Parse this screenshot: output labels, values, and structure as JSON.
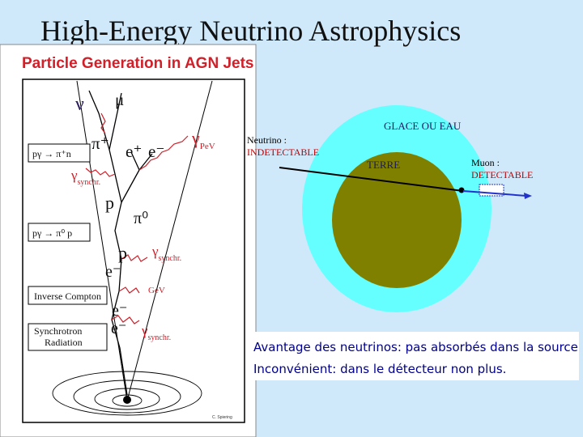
{
  "header": {
    "title": "High-Energy Neutrino Astrophysics"
  },
  "figure_left": {
    "title": "Particle Generation in AGN Jets",
    "particles": [
      {
        "text": "ν"
      },
      {
        "text": "μ"
      },
      {
        "text": "π⁺"
      },
      {
        "text": "e⁺"
      },
      {
        "text": "e⁻"
      },
      {
        "text": "γ",
        "sub": "PeV"
      },
      {
        "text": "γ",
        "sub": "synchr."
      },
      {
        "text": "p"
      },
      {
        "text": "π⁰"
      },
      {
        "text": "p"
      },
      {
        "text": "γ",
        "sub": "synchr."
      },
      {
        "text": "e⁻"
      },
      {
        "text": "GeV"
      },
      {
        "text": "e⁻"
      },
      {
        "text": "e⁻"
      },
      {
        "text": "γ",
        "sub": "synchr."
      }
    ],
    "boxes": [
      "pγ → π⁺n",
      "pγ → π⁰ p",
      "Inverse Compton",
      "Synchrotron",
      "Radiation"
    ],
    "credit": "C. Spiering"
  },
  "figure_right": {
    "outer_label": "GLACE OU EAU",
    "neutrino": [
      "Neutrino :",
      "INDETECTABLE"
    ],
    "inner_label": "TERRE",
    "muon": [
      "Muon :",
      "DETECTABLE"
    ]
  },
  "notes": [
    "Avantage des neutrinos: pas absorbés dans la source",
    "Inconvénient: dans le détecteur non plus."
  ]
}
